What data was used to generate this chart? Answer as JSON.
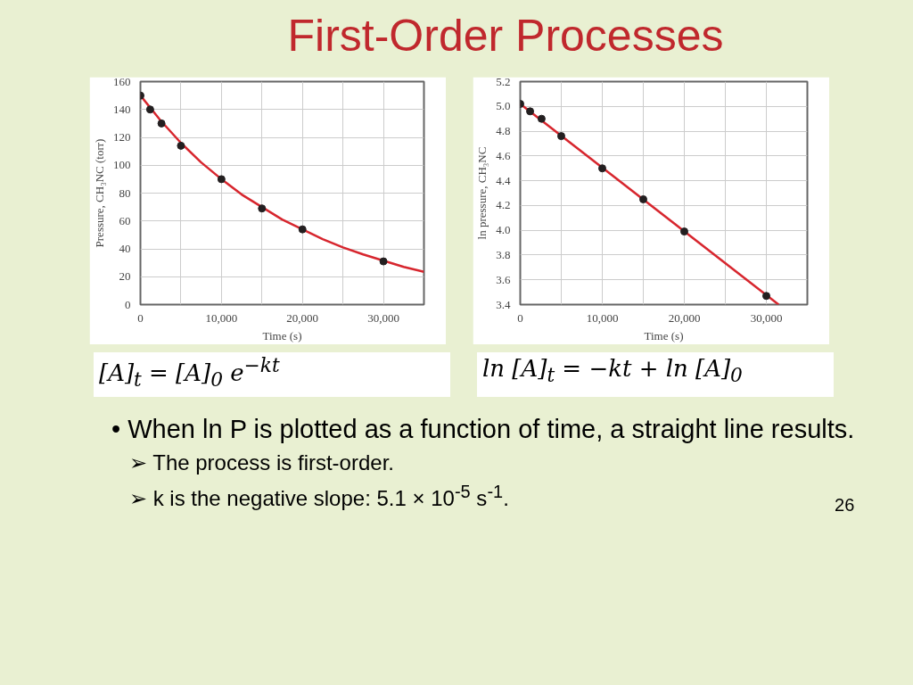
{
  "chart_data": [
    {
      "type": "scatter",
      "title": "First-Order Processes",
      "xlabel": "Time (s)",
      "ylabel": "Pressure, CH₃NC (torr)",
      "marker": "circle",
      "grid": true,
      "x": [
        0,
        1200,
        2600,
        5000,
        10000,
        15000,
        20000,
        30000
      ],
      "series": [
        {
          "color": "#231f20",
          "values": [
            150,
            140,
            130,
            114,
            90,
            69,
            54,
            31
          ]
        },
        {
          "type": "line",
          "color": "#d7262e",
          "line_style": "solid",
          "marker": "none",
          "x": [
            0,
            2500,
            5000,
            7500,
            10000,
            12500,
            15000,
            17500,
            20000,
            22500,
            25000,
            27500,
            30000,
            32500,
            35000
          ],
          "values": [
            150,
            132,
            116,
            102,
            90,
            79,
            70,
            61,
            54,
            47,
            41,
            36,
            31.5,
            27,
            23.5
          ]
        }
      ],
      "xlim": [
        0,
        35000
      ],
      "ylim": [
        0,
        160
      ],
      "xticks": [
        0,
        {
          "value": 5000,
          "label": null
        },
        {
          "value": 10000,
          "label": "10,000"
        },
        {
          "value": 15000,
          "label": null
        },
        {
          "value": 20000,
          "label": "20,000"
        },
        {
          "value": 25000,
          "label": null
        },
        {
          "value": 30000,
          "label": "30,000"
        }
      ],
      "yticks": [
        0,
        20,
        40,
        60,
        80,
        100,
        120,
        140,
        160
      ],
      "annotations": [
        "[A]$_{t}$ = [A]$_{0}$ e$^{−kt}$"
      ]
    },
    {
      "type": "scatter",
      "xlabel": "Time (s)",
      "ylabel": "ln pressure, CH₃NC",
      "marker": "circle",
      "grid": true,
      "x": [
        0,
        1200,
        2600,
        5000,
        10000,
        15000,
        20000,
        30000
      ],
      "series": [
        {
          "color": "#231f20",
          "values": [
            5.02,
            4.96,
            4.9,
            4.76,
            4.5,
            4.25,
            3.99,
            3.47
          ]
        },
        {
          "type": "line",
          "color": "#d7262e",
          "line_style": "solid",
          "marker": "none",
          "x": [
            0,
            31500
          ],
          "values": [
            5.02,
            3.4
          ]
        }
      ],
      "xlim": [
        0,
        35000
      ],
      "ylim": [
        3.4,
        5.2
      ],
      "xticks": [
        0,
        {
          "value": 5000,
          "label": null
        },
        {
          "value": 10000,
          "label": "10,000"
        },
        {
          "value": 15000,
          "label": null
        },
        {
          "value": 20000,
          "label": "20,000"
        },
        {
          "value": 25000,
          "label": null
        },
        {
          "value": 30000,
          "label": "30,000"
        }
      ],
      "yticks": [
        {
          "value": 3.4,
          "label": "3.4"
        },
        {
          "value": 3.6,
          "label": "3.6"
        },
        {
          "value": 3.8,
          "label": "3.8"
        },
        {
          "value": 4.0,
          "label": "4.0"
        },
        {
          "value": 4.2,
          "label": "4.2"
        },
        {
          "value": 4.4,
          "label": "4.4"
        },
        {
          "value": 4.6,
          "label": "4.6"
        },
        {
          "value": 4.8,
          "label": "4.8"
        },
        {
          "value": 5.0,
          "label": "5.0"
        },
        {
          "value": 5.2,
          "label": "5.2"
        }
      ],
      "annotations": [
        "ln [A]$_{t}$ = −kt + ln [A]$_{0}$",
        "• When ln P is plotted as a function of time, a straight line results.",
        "➢ The process is first-order.",
        "➢ k is the negative slope:  5.1 × 10$^{-5}$ s$^{-1}$.",
        "26"
      ]
    }
  ]
}
